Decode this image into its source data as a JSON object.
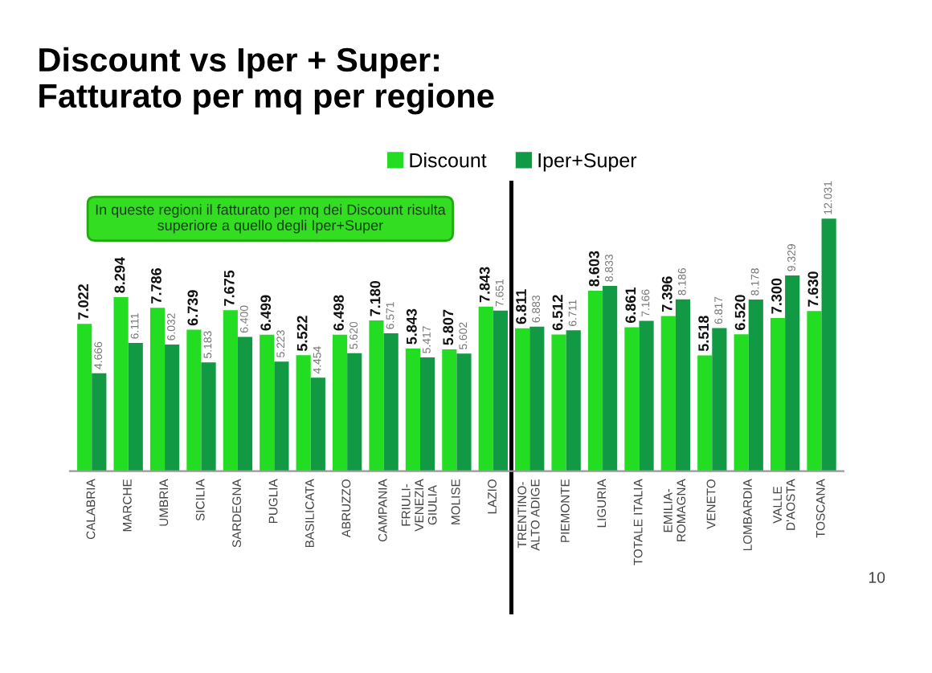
{
  "chart_data": {
    "type": "bar",
    "title": "Discount vs Iper + Super:\nFatturato per mq per regione",
    "categories": [
      "CALABRIA",
      "MARCHE",
      "UMBRIA",
      "SICILIA",
      "SARDEGNA",
      "PUGLIA",
      "BASILICATA",
      "ABRUZZO",
      "CAMPANIA",
      "FRIULI-\nVENEZIA\nGIULIA",
      "MOLISE",
      "LAZIO",
      "TRENTINO-\nALTO ADIGE",
      "PIEMONTE",
      "LIGURIA",
      "TOTALE ITALIA",
      "EMILIA-\nROMAGNA",
      "VENETO",
      "LOMBARDIA",
      "VALLE\nD'AOSTA",
      "TOSCANA"
    ],
    "series": [
      {
        "name": "Discount",
        "color": "#22dd22",
        "values": [
          7022,
          8294,
          7786,
          6739,
          7675,
          6499,
          5522,
          6498,
          7180,
          5843,
          5807,
          7843,
          6811,
          6512,
          8603,
          6861,
          7396,
          5518,
          6520,
          7300,
          7630
        ],
        "value_labels": [
          "7.022",
          "8.294",
          "7.786",
          "6.739",
          "7.675",
          "6.499",
          "5.522",
          "6.498",
          "7.180",
          "5.843",
          "5.807",
          "7.843",
          "6.811",
          "6.512",
          "8.603",
          "6.861",
          "7.396",
          "5.518",
          "6.520",
          "7.300",
          "7.630"
        ]
      },
      {
        "name": "Iper+Super",
        "color": "#119944",
        "values": [
          4666,
          6111,
          6032,
          5183,
          6400,
          5223,
          4454,
          5620,
          6571,
          5417,
          5602,
          7651,
          6883,
          6711,
          8833,
          7166,
          8186,
          6817,
          8178,
          9329,
          12031
        ],
        "value_labels": [
          "4.666",
          "6.111",
          "6.032",
          "5.183",
          "6.400",
          "5.223",
          "4.454",
          "5.620",
          "6.571",
          "5.417",
          "5.602",
          "7.651",
          "6.883",
          "6.711",
          "8.833",
          "7.166",
          "8.186",
          "6.817",
          "8.178",
          "9.329",
          "12.031"
        ]
      }
    ],
    "legend": "top",
    "annotations": [
      "In queste regioni il fatturato per mq dei Discount risulta\nsuperiore a quello degli Iper+Super",
      "10"
    ]
  }
}
